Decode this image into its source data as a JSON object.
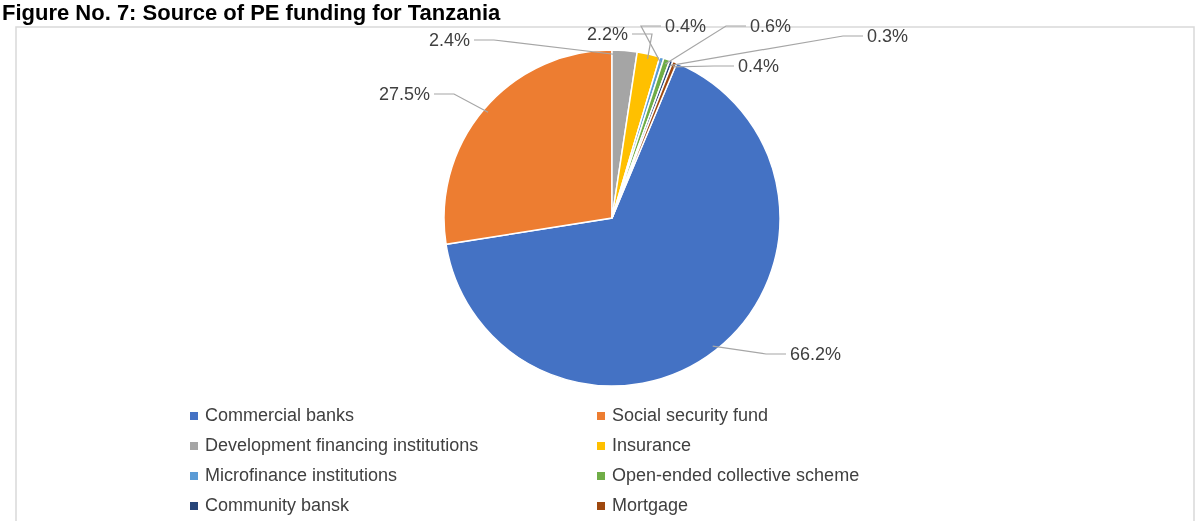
{
  "chart_data": {
    "type": "pie",
    "title": "Figure No. 7: Source of PE funding for Tanzania",
    "categories": [
      "Commercial banks",
      "Social security fund",
      "Development financing institutions",
      "Insurance",
      "Microfinance institutions",
      "Open-ended collective scheme",
      "Community bansk",
      "Mortgage"
    ],
    "values": [
      66.2,
      27.5,
      2.4,
      2.2,
      0.4,
      0.6,
      0.3,
      0.4
    ],
    "colors": [
      "#4472c4",
      "#ed7d31",
      "#a5a5a5",
      "#ffc000",
      "#5b9bd5",
      "#70ad47",
      "#264478",
      "#9e480e"
    ],
    "value_labels": [
      "66.2%",
      "27.5%",
      "2.4%",
      "2.2%",
      "0.4%",
      "0.6%",
      "0.3%",
      "0.4%"
    ],
    "legend": "bottom"
  }
}
